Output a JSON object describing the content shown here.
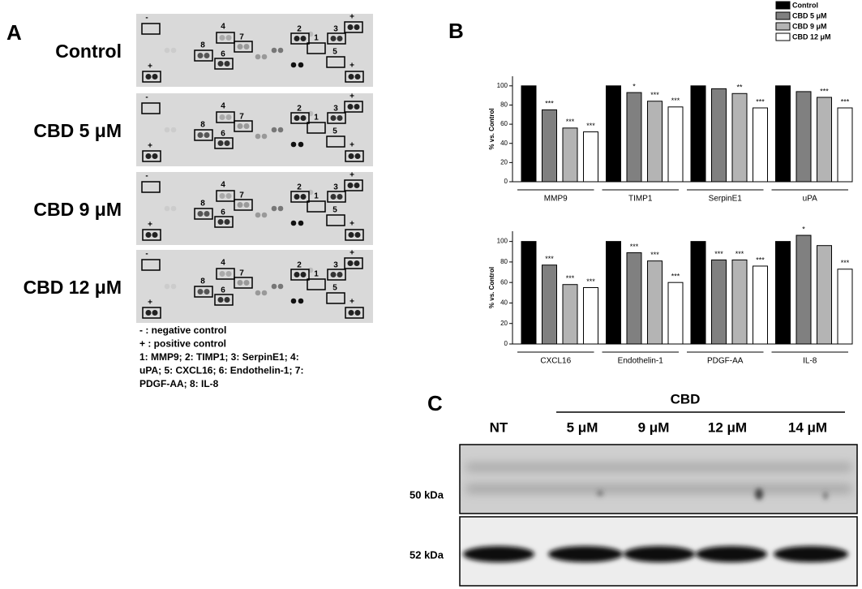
{
  "panel_a": {
    "label": "A",
    "membranes": [
      "Control",
      "CBD 5 μM",
      "CBD 9 μM",
      "CBD 12 μM"
    ],
    "spots": [
      "-",
      "+",
      "1",
      "2",
      "3",
      "4",
      "5",
      "6",
      "7",
      "8"
    ],
    "legend": [
      "- : negative control",
      "+ : positive control",
      "1: MMP9; 2: TIMP1; 3: SerpinE1; 4:",
      "uPA; 5: CXCL16; 6: Endothelin-1; 7:",
      "PDGF-AA; 8: IL-8"
    ]
  },
  "panel_b": {
    "label": "B"
  },
  "panel_c": {
    "label": "C",
    "group": "CBD",
    "lanes": [
      "NT",
      "5 μM",
      "9 μM",
      "12 μM",
      "14 μM"
    ],
    "markers": [
      "50 kDa",
      "52 kDa"
    ]
  },
  "chart_data": [
    {
      "type": "bar",
      "y_label": "% vs. Control",
      "categories": [
        "MMP9",
        "TIMP1",
        "SerpinE1",
        "uPA"
      ],
      "ylim": [
        0,
        110
      ],
      "yticks": [
        0,
        20,
        40,
        60,
        80,
        100
      ],
      "legend": "top-right",
      "series": [
        {
          "name": "Control",
          "color": "#000000",
          "values": [
            100,
            100,
            100,
            100
          ]
        },
        {
          "name": "CBD 5 μM",
          "color": "#808080",
          "values": [
            75,
            93,
            97,
            94
          ],
          "annotations": [
            "***",
            "*",
            null,
            null
          ]
        },
        {
          "name": "CBD 9 μM",
          "color": "#b4b4b4",
          "values": [
            56,
            84,
            92,
            88
          ],
          "annotations": [
            "***",
            "***",
            "**",
            "***"
          ]
        },
        {
          "name": "CBD 12 μM",
          "color": "#ffffff",
          "values": [
            52,
            78,
            77,
            77
          ],
          "annotations": [
            "***",
            "***",
            "***",
            "***"
          ]
        }
      ]
    },
    {
      "type": "bar",
      "y_label": "% vs. Control",
      "categories": [
        "CXCL16",
        "Endothelin-1",
        "PDGF-AA",
        "IL-8"
      ],
      "ylim": [
        0,
        110
      ],
      "yticks": [
        0,
        20,
        40,
        60,
        80,
        100
      ],
      "series": [
        {
          "color": "#000000",
          "values": [
            100,
            100,
            100,
            100
          ]
        },
        {
          "color": "#808080",
          "values": [
            77,
            89,
            82,
            106
          ],
          "annotations": [
            "***",
            "***",
            "***",
            "*"
          ]
        },
        {
          "color": "#b4b4b4",
          "values": [
            58,
            81,
            82,
            96
          ],
          "annotations": [
            "***",
            "***",
            "***",
            null
          ]
        },
        {
          "color": "#ffffff",
          "values": [
            55,
            60,
            76,
            73
          ],
          "annotations": [
            "***",
            "***",
            "***",
            "***"
          ]
        }
      ]
    }
  ]
}
